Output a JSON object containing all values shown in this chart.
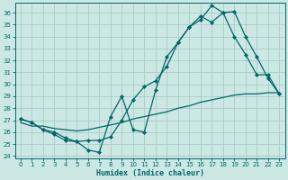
{
  "xlabel": "Humidex (Indice chaleur)",
  "bg_color": "#cce8e4",
  "grid_color": "#a8ccc8",
  "line_color": "#006666",
  "xlim": [
    -0.5,
    23.5
  ],
  "ylim": [
    23.8,
    36.8
  ],
  "yticks": [
    24,
    25,
    26,
    27,
    28,
    29,
    30,
    31,
    32,
    33,
    34,
    35,
    36
  ],
  "xticks": [
    0,
    1,
    2,
    3,
    4,
    5,
    6,
    7,
    8,
    9,
    10,
    11,
    12,
    13,
    14,
    15,
    16,
    17,
    18,
    19,
    20,
    21,
    22,
    23
  ],
  "line1_x": [
    0,
    1,
    2,
    3,
    4,
    5,
    6,
    7,
    8,
    9,
    10,
    11,
    12,
    13,
    14,
    15,
    16,
    17,
    18,
    19,
    20,
    21,
    22,
    23
  ],
  "line1_y": [
    27.1,
    26.8,
    26.2,
    25.8,
    25.3,
    25.2,
    24.5,
    24.3,
    27.3,
    29.0,
    26.2,
    26.0,
    29.5,
    32.3,
    33.5,
    34.8,
    35.4,
    36.6,
    36.0,
    36.1,
    34.0,
    32.3,
    30.5,
    29.2
  ],
  "line2_x": [
    0,
    1,
    2,
    3,
    4,
    5,
    6,
    7,
    8,
    9,
    10,
    11,
    12,
    13,
    14,
    15,
    16,
    17,
    18,
    19,
    20,
    21,
    22,
    23
  ],
  "line2_y": [
    27.1,
    26.8,
    26.2,
    26.0,
    25.5,
    25.2,
    25.3,
    25.3,
    25.6,
    27.0,
    28.7,
    29.8,
    30.3,
    31.5,
    33.5,
    34.8,
    35.7,
    35.2,
    36.0,
    34.0,
    32.5,
    30.8,
    30.8,
    29.2
  ],
  "line3_x": [
    0,
    1,
    2,
    3,
    4,
    5,
    6,
    7,
    8,
    9,
    10,
    11,
    12,
    13,
    14,
    15,
    16,
    17,
    18,
    19,
    20,
    21,
    22,
    23
  ],
  "line3_y": [
    26.8,
    26.5,
    26.5,
    26.3,
    26.2,
    26.1,
    26.2,
    26.4,
    26.6,
    26.8,
    27.1,
    27.3,
    27.5,
    27.7,
    28.0,
    28.2,
    28.5,
    28.7,
    28.9,
    29.1,
    29.2,
    29.2,
    29.3,
    29.3
  ]
}
